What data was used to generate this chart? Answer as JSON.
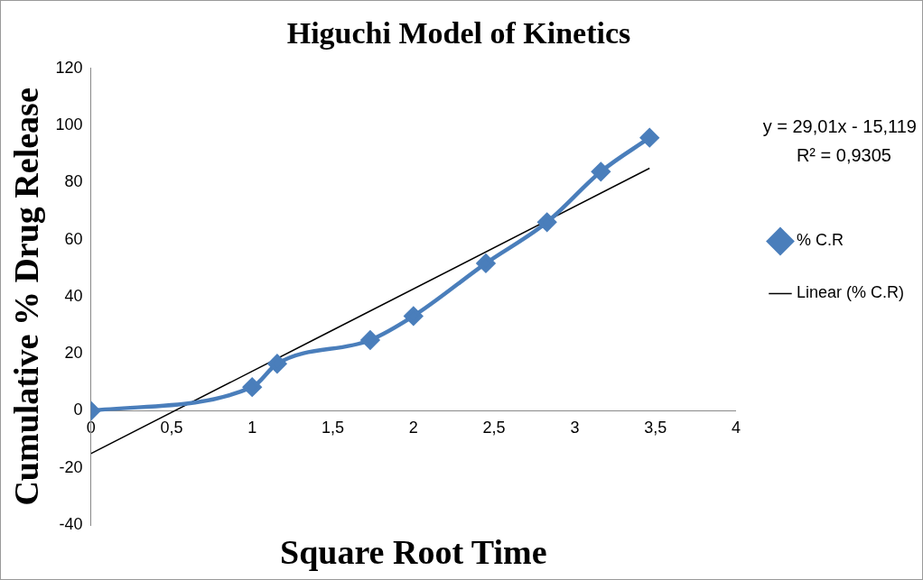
{
  "chart_data": {
    "type": "line",
    "title": "Higuchi Model of Kinetics",
    "xlabel": "Square Root Time",
    "ylabel": "Cumulative % Drug Release",
    "x": [
      0,
      1,
      1.155,
      1.732,
      2,
      2.449,
      2.828,
      3.162,
      3.464
    ],
    "series": [
      {
        "name": "% C.R",
        "color": "#4a7ebb",
        "values": [
          0,
          8.3,
          16.5,
          24.8,
          33.2,
          51.7,
          66.1,
          83.8,
          95.7
        ],
        "marker": "diamond"
      },
      {
        "name": "Linear (% C.R)",
        "type": "line",
        "color": "#000000",
        "x": [
          0,
          3.464
        ],
        "values": [
          -15,
          85
        ],
        "marker": "none",
        "line_style": "solid"
      }
    ],
    "xlim": [
      0,
      4
    ],
    "xticks": [
      0,
      {
        "value": 0.5,
        "label": "0,5"
      },
      1,
      {
        "value": 1.5,
        "label": "1,5"
      },
      2,
      {
        "value": 2.5,
        "label": "2,5"
      },
      3,
      {
        "value": 3.5,
        "label": "3,5"
      },
      4
    ],
    "ylim": [
      -40,
      120
    ],
    "yticks": [
      -40,
      -20,
      0,
      20,
      40,
      60,
      80,
      100,
      120
    ],
    "grid": false,
    "legend": "right",
    "annotations": [
      "y = 29,01x - 15,119",
      "R² = 0,9305"
    ]
  }
}
